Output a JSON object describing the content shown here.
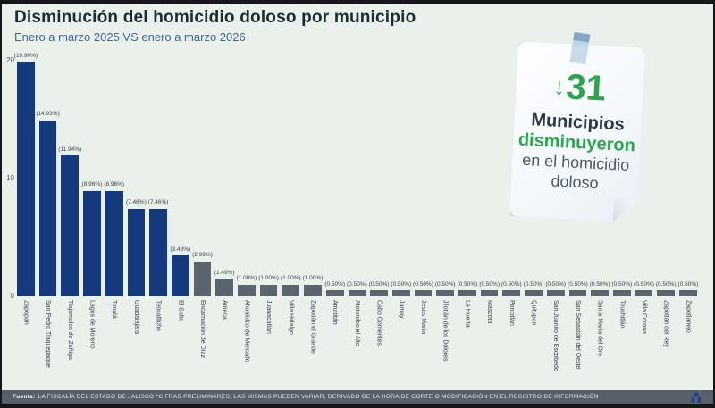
{
  "page": {
    "title": "Disminución del homicidio doloso por municipio",
    "subtitle": "Enero a marzo 2025 VS enero a marzo 2026"
  },
  "note": {
    "arrow": "↓",
    "number": "31",
    "line1": "Municipios",
    "line2": "disminuyeron",
    "line3": "en el homicidio",
    "line4": "doloso"
  },
  "footer": {
    "label": "Fuente:",
    "text": "LA FISCALÍA DEL ESTADO DE JALISCO *CIFRAS PRELIMINARES, LAS MISMAS PUEDEN VARIAR, DERIVADO DE LA HORA DE CORTE O MODIFICACIÓN EN EL REGISTRO DE INFORMACIÓN"
  },
  "colors": {
    "background": "#e9f1ea",
    "bar_blue": "#15397d",
    "bar_gray": "#5b6570",
    "accent_green": "#2da44e",
    "footer_bg": "#57606b",
    "title": "#1b2a36",
    "subtitle": "#3f64ab"
  },
  "chart_data": {
    "type": "bar",
    "title": "Disminución del homicidio doloso por municipio",
    "subtitle": "Enero a marzo 2025 VS enero a marzo 2026",
    "xlabel": "",
    "ylabel": "",
    "ylim": [
      0,
      20
    ],
    "yticks": [
      20,
      10,
      0
    ],
    "grid": false,
    "legend": false,
    "blue_bar_count": 8,
    "categories": [
      "Zapopan",
      "San Pedro Tlaquepaque",
      "Tlajomulco de Zúñiga",
      "Lagos de Moreno",
      "Tonalá",
      "Guadalajara",
      "Teocaltiche",
      "El Salto",
      "Encarnación de Díaz",
      "Ameca",
      "Ahualulco de Mercado",
      "Juanacatlán",
      "Villa Hidalgo",
      "Zapotlán el Grande",
      "Amatitán",
      "Atotonilco el Alto",
      "Cabo Corrientes",
      "Jamay",
      "Jesús María",
      "Jilotlán de los Dolores",
      "La Huerta",
      "Mascota",
      "Poncitlán",
      "Quitupan",
      "San Juanito de Escobedo",
      "San Sebastián del Oeste",
      "Santa María del Oro",
      "Teuchitlán",
      "Villa Corona",
      "Zapotlán del Rey",
      "Zapotlanejo"
    ],
    "values": [
      19.9,
      14.93,
      11.94,
      8.96,
      8.96,
      7.46,
      7.46,
      3.48,
      2.99,
      1.49,
      1.0,
      1.0,
      1.0,
      1.0,
      0.5,
      0.5,
      0.5,
      0.5,
      0.5,
      0.5,
      0.5,
      0.5,
      0.5,
      0.5,
      0.5,
      0.5,
      0.5,
      0.5,
      0.5,
      0.5,
      0.5
    ],
    "bar_labels": [
      "(19.90%)",
      "(14.93%)",
      "(11.94%)",
      "(8.96%)",
      "(8.96%)",
      "(7.46%)",
      "(7.46%)",
      "(3.48%)",
      "(2.99%)",
      "(1.49%)",
      "(1.00%)",
      "(1.00%)",
      "(1.00%)",
      "(1.00%)",
      "(0.50%)",
      "(0.50%)",
      "(0.50%)",
      "(0.50%)",
      "(0.50%)",
      "(0.50%)",
      "(0.50%)",
      "(0.50%)",
      "(0.50%)",
      "(0.50%)",
      "(0.50%)",
      "(0.50%)",
      "(0.50%)",
      "(0.50%)",
      "(0.50%)",
      "(0.50%)",
      "(0.50%)"
    ]
  }
}
